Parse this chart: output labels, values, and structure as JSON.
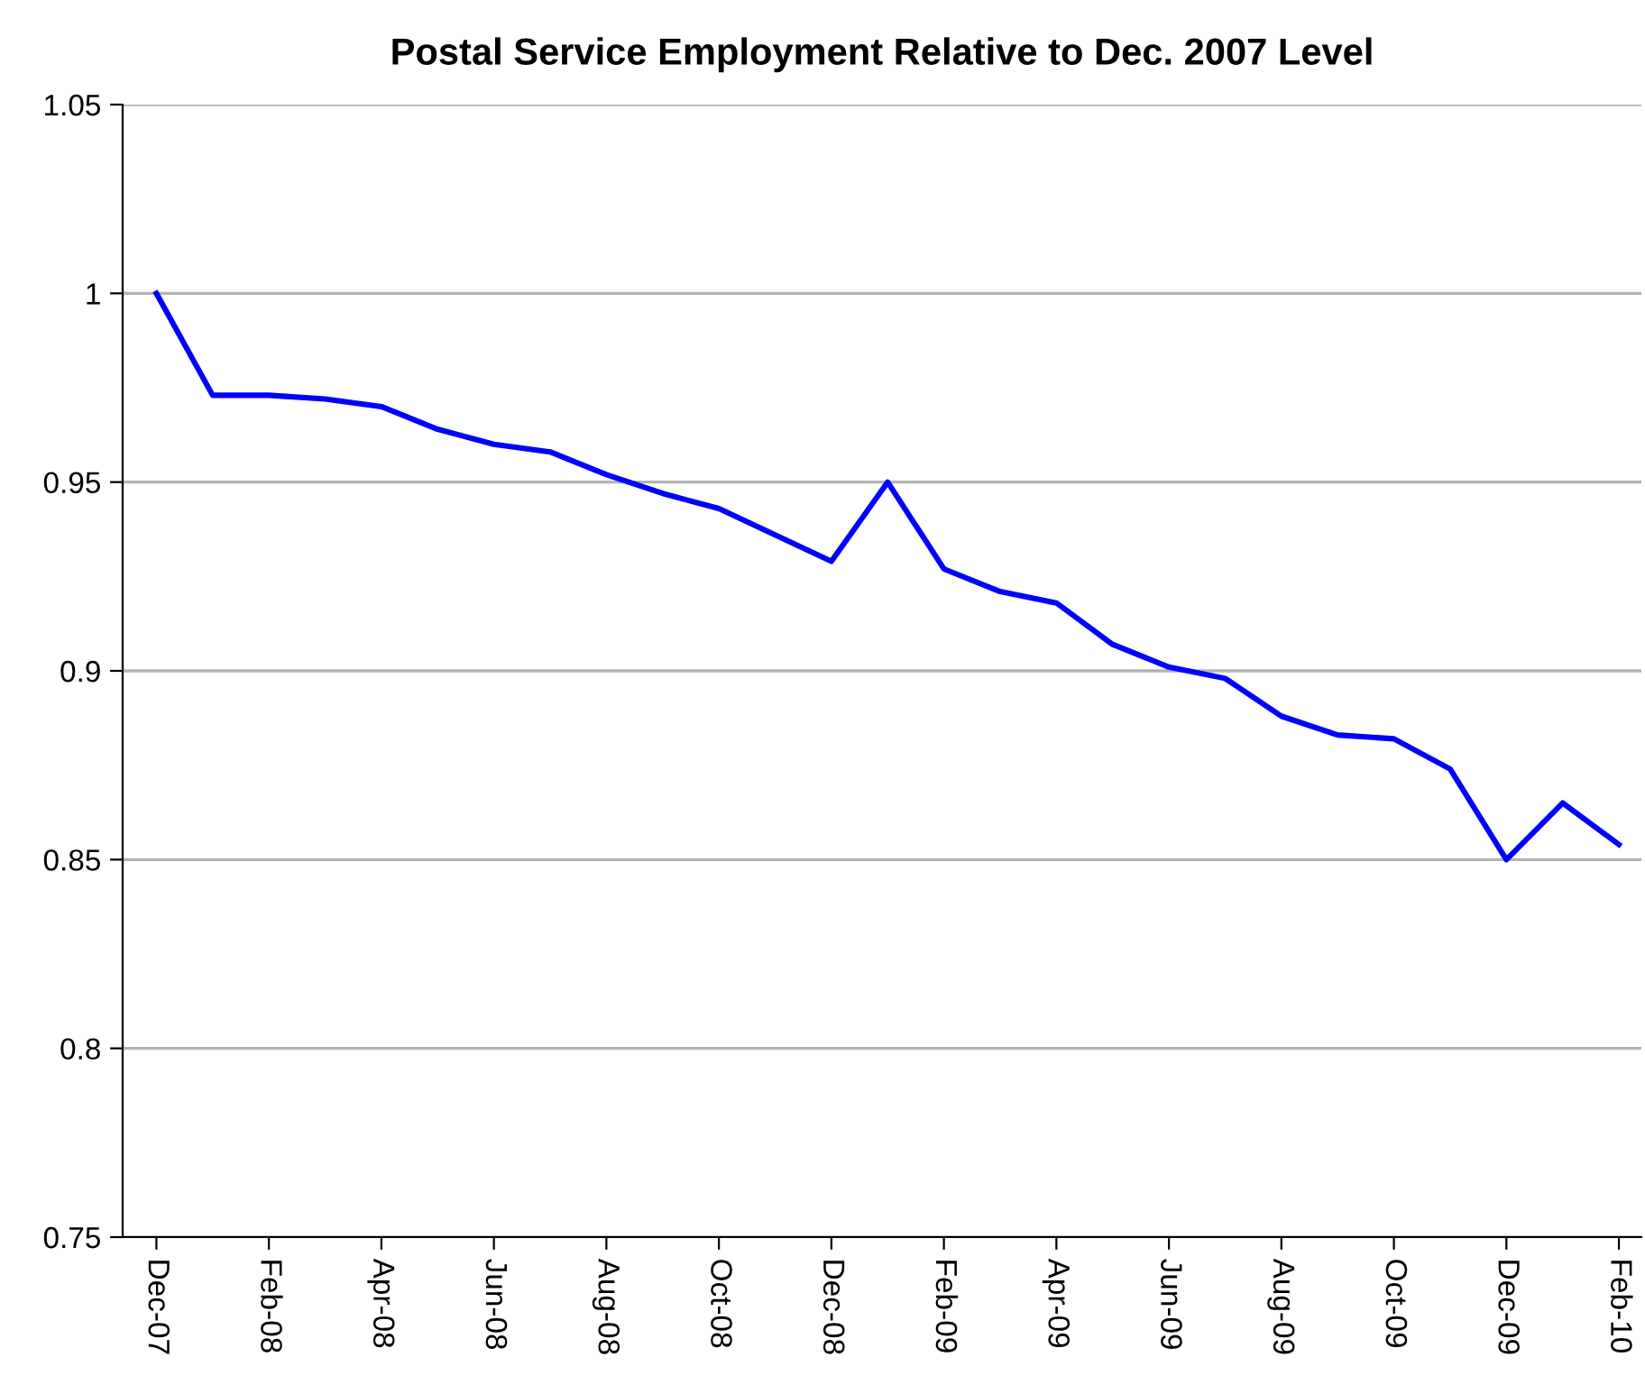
{
  "chart_data": {
    "type": "line",
    "title": "Postal Service Employment Relative to Dec. 2007 Level",
    "categories": [
      "Dec-07",
      null,
      "Feb-08",
      null,
      "Apr-08",
      null,
      "Jun-08",
      null,
      "Aug-08",
      null,
      "Oct-08",
      null,
      "Dec-08",
      null,
      "Feb-09",
      null,
      "Apr-09",
      null,
      "Jun-09",
      null,
      "Aug-09",
      null,
      "Oct-09",
      null,
      "Dec-09",
      null,
      "Feb-10"
    ],
    "series": [
      {
        "color": "#0000ff",
        "values": [
          1.0,
          0.973,
          0.973,
          0.972,
          0.97,
          0.964,
          0.96,
          0.958,
          0.952,
          0.947,
          0.943,
          0.936,
          0.929,
          0.95,
          0.927,
          0.921,
          0.918,
          0.907,
          0.901,
          0.898,
          0.888,
          0.883,
          0.882,
          0.874,
          0.85,
          0.865,
          0.854
        ]
      }
    ],
    "ylim": [
      0.75,
      1.05
    ],
    "yticks": [
      0.75,
      0.8,
      0.85,
      0.9,
      0.95,
      1,
      1.05
    ],
    "grid": "y",
    "legend": false,
    "marker": "none",
    "line_style": "solid"
  }
}
